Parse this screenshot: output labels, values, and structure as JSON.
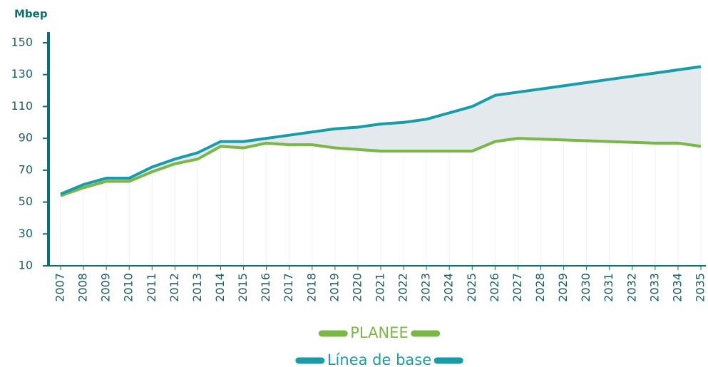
{
  "chart_data": {
    "type": "line",
    "y_axis_label": "Mbep",
    "categories": [
      "2007",
      "2008",
      "2009",
      "2010",
      "2011",
      "2012",
      "2013",
      "2014",
      "2015",
      "2016",
      "2017",
      "2018",
      "2019",
      "2020",
      "2021",
      "2022",
      "2023",
      "2024",
      "2025",
      "2026",
      "2027",
      "2028",
      "2029",
      "2030",
      "2031",
      "2032",
      "2033",
      "2034",
      "2035"
    ],
    "series": [
      {
        "name": "PLANEE",
        "color": "#7ab648",
        "values": [
          54,
          59,
          63,
          63,
          69,
          74,
          77,
          85,
          84,
          87,
          86,
          86,
          84,
          83,
          82,
          82,
          82,
          82,
          82,
          88,
          90,
          89.5,
          89,
          88.5,
          88,
          87.5,
          87,
          87,
          85
        ]
      },
      {
        "name": "Línea de base",
        "color": "#1a9ba8",
        "values": [
          55,
          61,
          65,
          65,
          72,
          77,
          81,
          88,
          88,
          90,
          92,
          94,
          96,
          97,
          99,
          100,
          102,
          106,
          110,
          117,
          119,
          121,
          123,
          125,
          127,
          129,
          131,
          133,
          135
        ]
      }
    ],
    "area_fill": "#e3e9ec",
    "ylim": [
      10,
      150
    ],
    "yticks": [
      10,
      30,
      50,
      70,
      90,
      110,
      130,
      150
    ]
  }
}
